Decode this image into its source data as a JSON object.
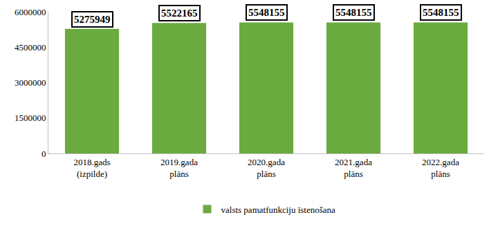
{
  "chart_data": {
    "type": "bar",
    "categories": [
      "2018.gads (izpilde)",
      "2019.gada plāns",
      "2020.gada plāns",
      "2021.gada plāns",
      "2022.gada plāns"
    ],
    "series": [
      {
        "name": "valsts pamatfunkciju īstenošana",
        "color": "#6aaa3f",
        "values": [
          5275949,
          5522165,
          5548155,
          5548155,
          5548155
        ]
      }
    ],
    "ylim": [
      0,
      6000000
    ],
    "yticks": [
      0,
      1500000,
      3000000,
      4500000,
      6000000
    ],
    "grid": false,
    "legend": "bottom",
    "data_labels": true
  }
}
